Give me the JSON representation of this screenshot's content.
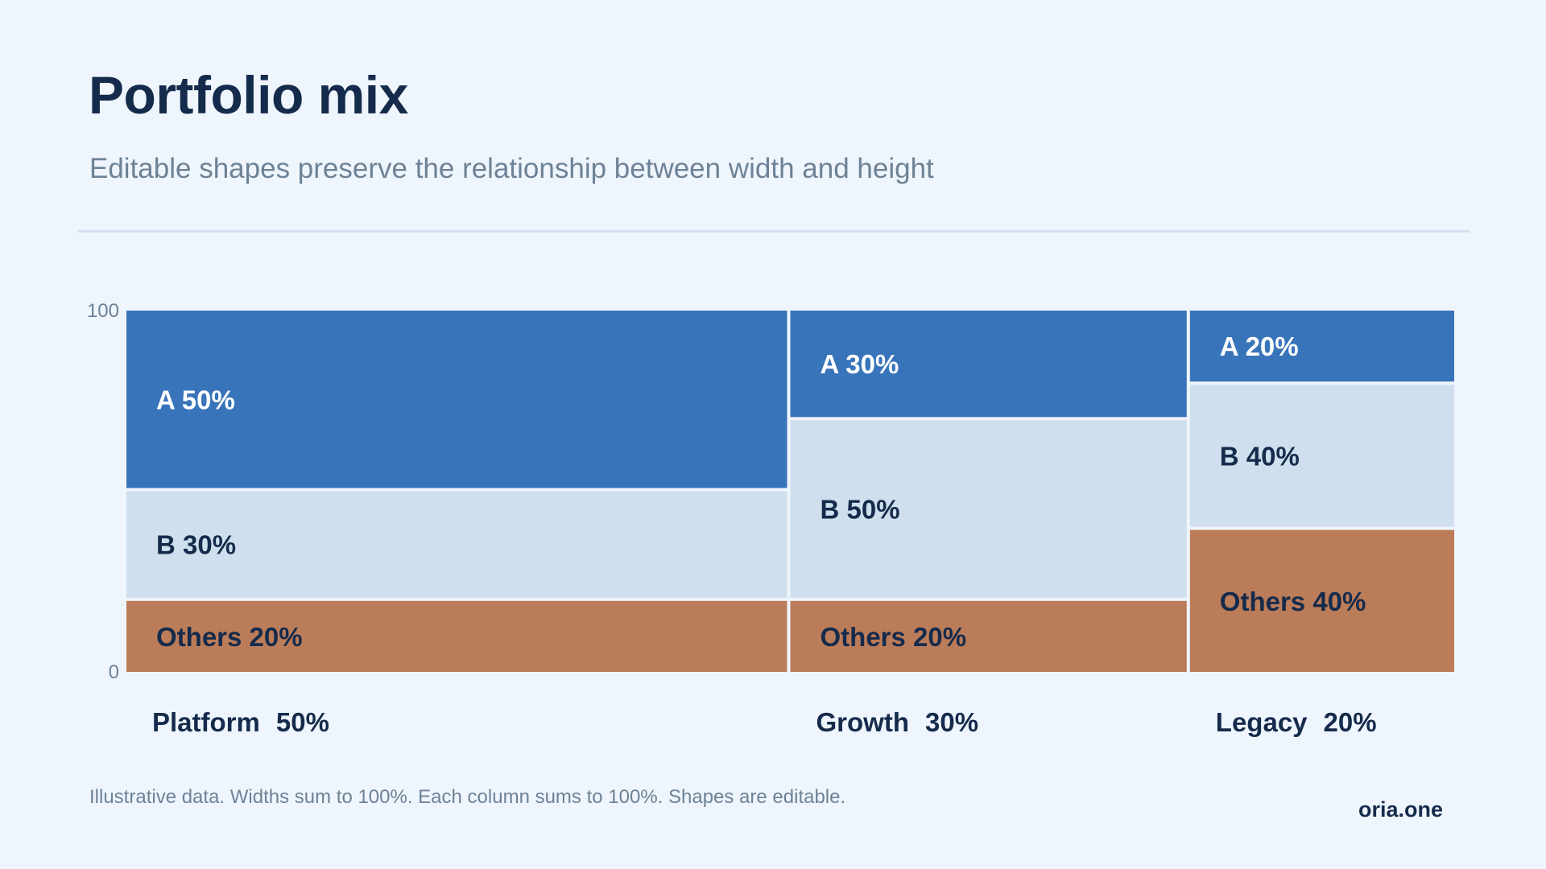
{
  "header": {
    "title": "Portfolio mix",
    "subtitle": "Editable shapes preserve the relationship between width and height"
  },
  "footer": {
    "note": "Illustrative data. Widths sum to 100%. Each column sums to 100%. Shapes are editable.",
    "brand": "oria.one"
  },
  "colors": {
    "A": "#3874ba",
    "B": "#d0dfee",
    "Others": "#bb7c59",
    "dark_text": "#152b4b",
    "light_text": "#ffffff",
    "axis_text": "#6d8296"
  },
  "chart_data": {
    "type": "mekko",
    "y_range": [
      0,
      100
    ],
    "y_tick_labels": [
      "0",
      "100"
    ],
    "columns": [
      {
        "name": "Platform",
        "width_label": "50%",
        "width": 50,
        "segments": [
          {
            "key": "A",
            "label": "A 50%",
            "value": 50
          },
          {
            "key": "B",
            "label": "B 30%",
            "value": 30
          },
          {
            "key": "Others",
            "label": "Others 20%",
            "value": 20
          }
        ]
      },
      {
        "name": "Growth",
        "width_label": "30%",
        "width": 30,
        "segments": [
          {
            "key": "A",
            "label": "A 30%",
            "value": 30
          },
          {
            "key": "B",
            "label": "B 50%",
            "value": 50
          },
          {
            "key": "Others",
            "label": "Others 20%",
            "value": 20
          }
        ]
      },
      {
        "name": "Legacy",
        "width_label": "20%",
        "width": 20,
        "segments": [
          {
            "key": "A",
            "label": "A 20%",
            "value": 20
          },
          {
            "key": "B",
            "label": "B 40%",
            "value": 40
          },
          {
            "key": "Others",
            "label": "Others 40%",
            "value": 40
          }
        ]
      }
    ]
  }
}
